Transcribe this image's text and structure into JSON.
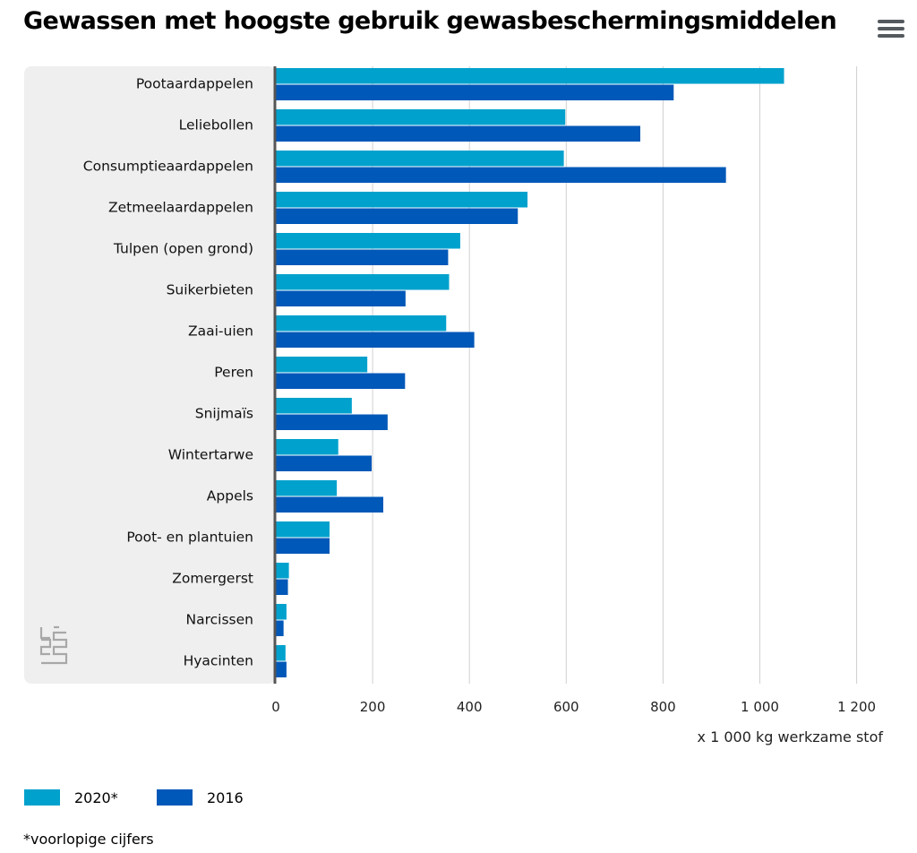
{
  "title": "Gewassen met hoogste gebruik gewasbeschermingsmiddelen",
  "menu_icon": "hamburger-menu-icon",
  "logo_icon": "cbs-logo-icon",
  "footnote": "*voorlopige cijfers",
  "colors": {
    "s2020": "#00a1cd",
    "s2016": "#0058b8",
    "panel": "#efefef",
    "grid": "#d0d0d0",
    "axis": "#555555"
  },
  "chart_data": {
    "type": "bar",
    "orientation": "horizontal",
    "title": "Gewassen met hoogste gebruik gewasbeschermingsmiddelen",
    "xlabel": "x 1 000 kg werkzame stof",
    "ylabel": "",
    "xlim": [
      0,
      1250
    ],
    "xticks": [
      0,
      200,
      400,
      600,
      800,
      1000,
      1200
    ],
    "xtick_labels": [
      "0",
      "200",
      "400",
      "600",
      "800",
      "1 000",
      "1 200"
    ],
    "grid": true,
    "legend_position": "bottom-left",
    "categories": [
      "Pootaardappelen",
      "Leliebollen",
      "Consumptieaardappelen",
      "Zetmeelaardappelen",
      "Tulpen (open grond)",
      "Suikerbieten",
      "Zaai-uien",
      "Peren",
      "Snijmaïs",
      "Wintertarwe",
      "Appels",
      "Poot- en plantuien",
      "Zomergerst",
      "Narcissen",
      "Hyacinten"
    ],
    "series": [
      {
        "name": "2020*",
        "color": "#00a1cd",
        "values": [
          1050,
          598,
          595,
          520,
          381,
          358,
          352,
          189,
          157,
          129,
          126,
          111,
          27,
          22,
          20
        ]
      },
      {
        "name": "2016",
        "color": "#0058b8",
        "values": [
          822,
          753,
          930,
          500,
          356,
          268,
          410,
          267,
          231,
          198,
          222,
          111,
          25,
          16,
          22
        ]
      }
    ]
  }
}
